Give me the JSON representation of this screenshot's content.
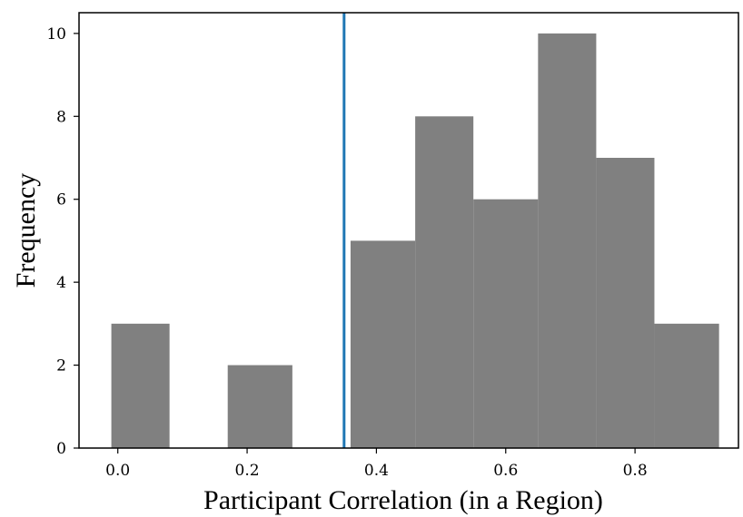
{
  "chart_data": {
    "type": "bar",
    "title": "",
    "xlabel": "Participant Correlation (in a Region)",
    "ylabel": "Frequency",
    "xlim": [
      -0.06,
      0.96
    ],
    "ylim": [
      0,
      10.5
    ],
    "xticks": [
      0.0,
      0.2,
      0.4,
      0.6,
      0.8
    ],
    "xtick_labels": [
      "0.0",
      "0.2",
      "0.4",
      "0.6",
      "0.8"
    ],
    "yticks": [
      0,
      2,
      4,
      6,
      8,
      10
    ],
    "ytick_labels": [
      "0",
      "2",
      "4",
      "6",
      "8",
      "10"
    ],
    "bins": [
      {
        "start": -0.01,
        "end": 0.08,
        "count": 3
      },
      {
        "start": 0.08,
        "end": 0.17,
        "count": 0
      },
      {
        "start": 0.17,
        "end": 0.27,
        "count": 2
      },
      {
        "start": 0.27,
        "end": 0.36,
        "count": 0
      },
      {
        "start": 0.36,
        "end": 0.46,
        "count": 5
      },
      {
        "start": 0.46,
        "end": 0.55,
        "count": 8
      },
      {
        "start": 0.55,
        "end": 0.65,
        "count": 6
      },
      {
        "start": 0.65,
        "end": 0.74,
        "count": 10
      },
      {
        "start": 0.74,
        "end": 0.83,
        "count": 7
      },
      {
        "start": 0.83,
        "end": 0.93,
        "count": 3
      }
    ],
    "reference_line": {
      "orientation": "vertical",
      "x": 0.35
    },
    "colors": {
      "bars": "#808080",
      "reference_line": "#1f77b4",
      "axes": "#000000"
    },
    "grid": false,
    "legend": "none"
  }
}
